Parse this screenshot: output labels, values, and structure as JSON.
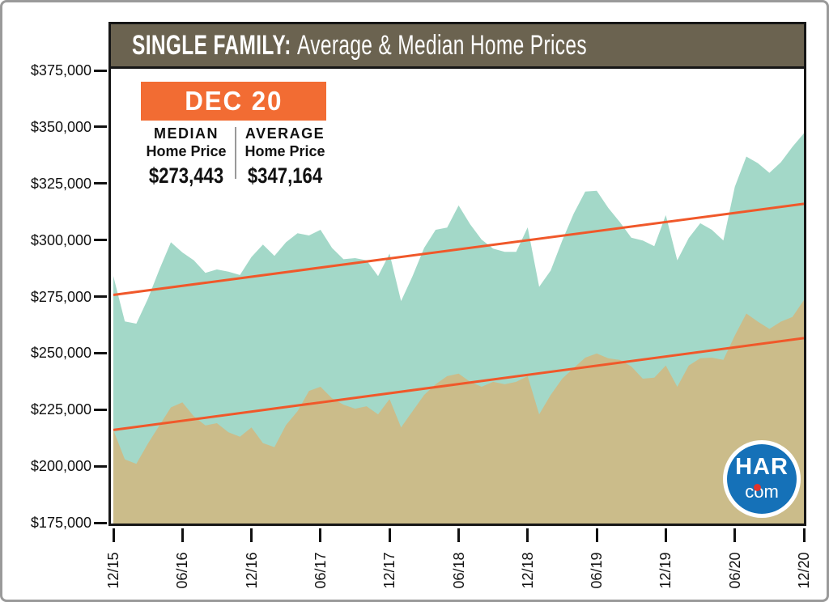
{
  "title": {
    "prefix": "SINGLE FAMILY:",
    "rest": "Average & Median Home Prices"
  },
  "legend": {
    "period": "DEC 20",
    "median": {
      "label": "MEDIAN",
      "sublabel": "Home Price",
      "value": "$273,443"
    },
    "average": {
      "label": "AVERAGE",
      "sublabel": "Home Price",
      "value": "$347,164"
    }
  },
  "logo": {
    "top": "HAR",
    "bottom": "com"
  },
  "colors": {
    "header_bg": "#6b6350",
    "accent_orange": "#f26c33",
    "trend_orange": "#f0582a",
    "average_fill": "#a3d8c8",
    "median_fill": "#cbbc8a",
    "logo_blue": "#1571b8",
    "logo_red": "#e2342b"
  },
  "chart_data": {
    "type": "area",
    "title": "SINGLE FAMILY: Average & Median Home Prices",
    "x_start": "12/15",
    "x_interval": "monthly",
    "x_tick_labels": [
      "12/15",
      "06/16",
      "12/16",
      "06/17",
      "12/17",
      "06/18",
      "12/18",
      "06/19",
      "12/19",
      "06/20",
      "12/20"
    ],
    "x_ticks_every_n_points": 6,
    "y_tick_labels": [
      "$375,000",
      "$350,000",
      "$325,000",
      "$300,000",
      "$275,000",
      "$250,000",
      "$225,000",
      "$200,000",
      "$175,000"
    ],
    "ylim": [
      175000,
      375000
    ],
    "grid": false,
    "series": [
      {
        "name": "Average Home Price",
        "fill_color_key": "average_fill",
        "values": [
          284000,
          264000,
          263000,
          274000,
          287000,
          299000,
          294500,
          291000,
          285500,
          287000,
          286000,
          284500,
          292500,
          298000,
          293000,
          299000,
          303000,
          302000,
          304500,
          296500,
          291500,
          292000,
          291000,
          284000,
          294000,
          273000,
          284000,
          296500,
          304500,
          305500,
          315300,
          307000,
          300200,
          296200,
          294800,
          294800,
          305600,
          279300,
          286500,
          299800,
          311700,
          321400,
          321800,
          314200,
          308000,
          301000,
          299800,
          297300,
          311000,
          291000,
          300900,
          307400,
          304500,
          299800,
          323600,
          336900,
          334000,
          329700,
          334400,
          341200,
          347164
        ],
        "trend_line": [
          275700,
          316000
        ]
      },
      {
        "name": "Median Home Price",
        "fill_color_key": "median_fill",
        "values": [
          216000,
          203000,
          201000,
          210000,
          218000,
          226000,
          228200,
          222000,
          218000,
          219000,
          215000,
          213000,
          217100,
          210200,
          208400,
          218200,
          224300,
          233300,
          235100,
          230000,
          227200,
          225400,
          226500,
          222900,
          229700,
          217100,
          224300,
          231500,
          236200,
          239800,
          240900,
          237300,
          235100,
          237300,
          236200,
          237300,
          239800,
          222900,
          231500,
          238700,
          243400,
          248000,
          249800,
          247700,
          247000,
          244100,
          238700,
          239100,
          244500,
          235100,
          244500,
          247700,
          248000,
          247000,
          257800,
          267500,
          263900,
          260700,
          263900,
          266000,
          273443
        ],
        "trend_line": [
          216000,
          256600
        ]
      }
    ],
    "callout": {
      "period": "DEC 20",
      "median_home_price": 273443,
      "average_home_price": 347164
    }
  }
}
